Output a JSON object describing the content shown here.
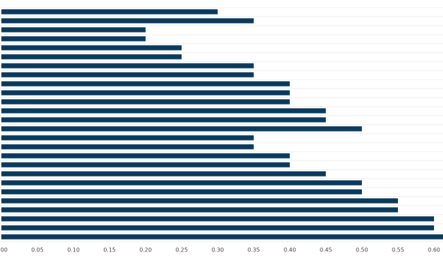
{
  "chart_data": {
    "type": "bar",
    "orientation": "horizontal",
    "categories": [
      null,
      null,
      null,
      null,
      null,
      null,
      null,
      null,
      null,
      null,
      null,
      null,
      null,
      null,
      null,
      null,
      null,
      null,
      null,
      null,
      null,
      null,
      null,
      null,
      null,
      null
    ],
    "values": [
      0.3,
      0.35,
      0.2,
      0.2,
      0.25,
      0.25,
      0.35,
      0.35,
      0.4,
      0.4,
      0.4,
      0.45,
      0.45,
      0.5,
      0.35,
      0.35,
      0.4,
      0.4,
      0.45,
      0.5,
      0.5,
      0.55,
      0.55,
      0.6,
      0.6,
      0.62
    ],
    "color": "#0b3a5c",
    "xlim": [
      0,
      0.6125
    ],
    "xticks": [
      {
        "value": 0,
        "label": "0.00"
      },
      0.05,
      {
        "value": 0.1,
        "label": "0.10"
      },
      0.15,
      {
        "value": 0.2,
        "label": "0.20"
      },
      0.25,
      {
        "value": 0.3,
        "label": "0.30"
      },
      0.35,
      {
        "value": 0.4,
        "label": "0.40"
      },
      0.45,
      {
        "value": 0.5,
        "label": "0.50"
      },
      0.55,
      {
        "value": 0.6,
        "label": "0.60"
      }
    ]
  }
}
